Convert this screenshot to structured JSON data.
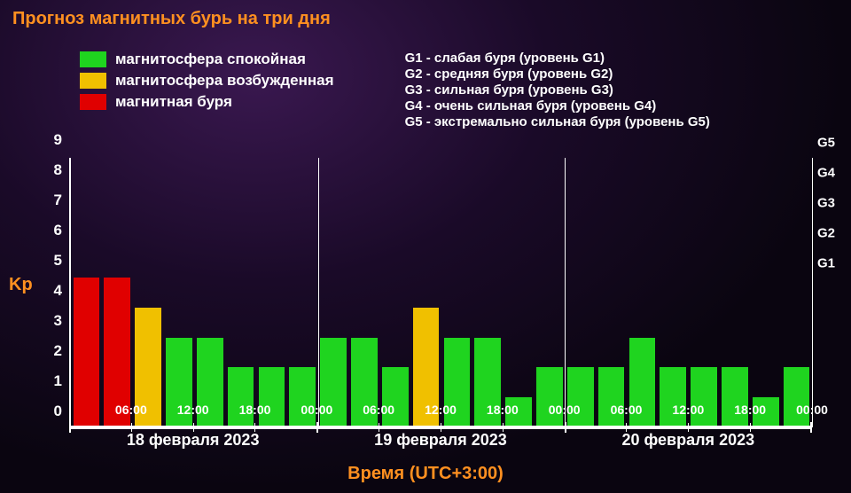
{
  "title": "Прогноз магнитных бурь на три дня",
  "colors": {
    "calm": "#1fd41f",
    "excited": "#f0c000",
    "storm": "#e00000",
    "accent": "#ff9020",
    "axis": "#ffffff"
  },
  "legend_colors": [
    {
      "color_key": "calm",
      "label": "магнитосфера спокойная"
    },
    {
      "color_key": "excited",
      "label": "магнитосфера возбужденная"
    },
    {
      "color_key": "storm",
      "label": "магнитная буря"
    }
  ],
  "legend_g": [
    "G1 - слабая буря (уровень G1)",
    "G2 - средняя буря (уровень G2)",
    "G3 - сильная буря (уровень G3)",
    "G4 - очень сильная буря (уровень G4)",
    "G5 - экстремально сильная буря (уровень G5)"
  ],
  "chart": {
    "type": "bar",
    "y_label": "Kp",
    "y_min": 0,
    "y_max": 9,
    "y_ticks": [
      0,
      1,
      2,
      3,
      4,
      5,
      6,
      7,
      8,
      9
    ],
    "g_ticks": [
      {
        "label": "G1",
        "at": 5
      },
      {
        "label": "G2",
        "at": 6
      },
      {
        "label": "G3",
        "at": 7
      },
      {
        "label": "G4",
        "at": 8
      },
      {
        "label": "G5",
        "at": 9
      }
    ],
    "bars_per_day": 8,
    "days": [
      {
        "label": "18 февраля 2023"
      },
      {
        "label": "19 февраля 2023"
      },
      {
        "label": "20 февраля 2023"
      }
    ],
    "x_tick_labels": [
      "06:00",
      "12:00",
      "18:00",
      "00:00"
    ],
    "x_title": "Время (UTC+3:00)",
    "bar_gap_ratio": 0.15,
    "values": [
      5,
      5,
      4,
      3,
      3,
      2,
      2,
      2,
      3,
      3,
      2,
      4,
      3,
      3,
      1,
      2,
      2,
      2,
      3,
      2,
      2,
      2,
      1,
      2
    ],
    "bar_states": [
      "storm",
      "storm",
      "excited",
      "calm",
      "calm",
      "calm",
      "calm",
      "calm",
      "calm",
      "calm",
      "calm",
      "excited",
      "calm",
      "calm",
      "calm",
      "calm",
      "calm",
      "calm",
      "calm",
      "calm",
      "calm",
      "calm",
      "calm",
      "calm"
    ]
  }
}
